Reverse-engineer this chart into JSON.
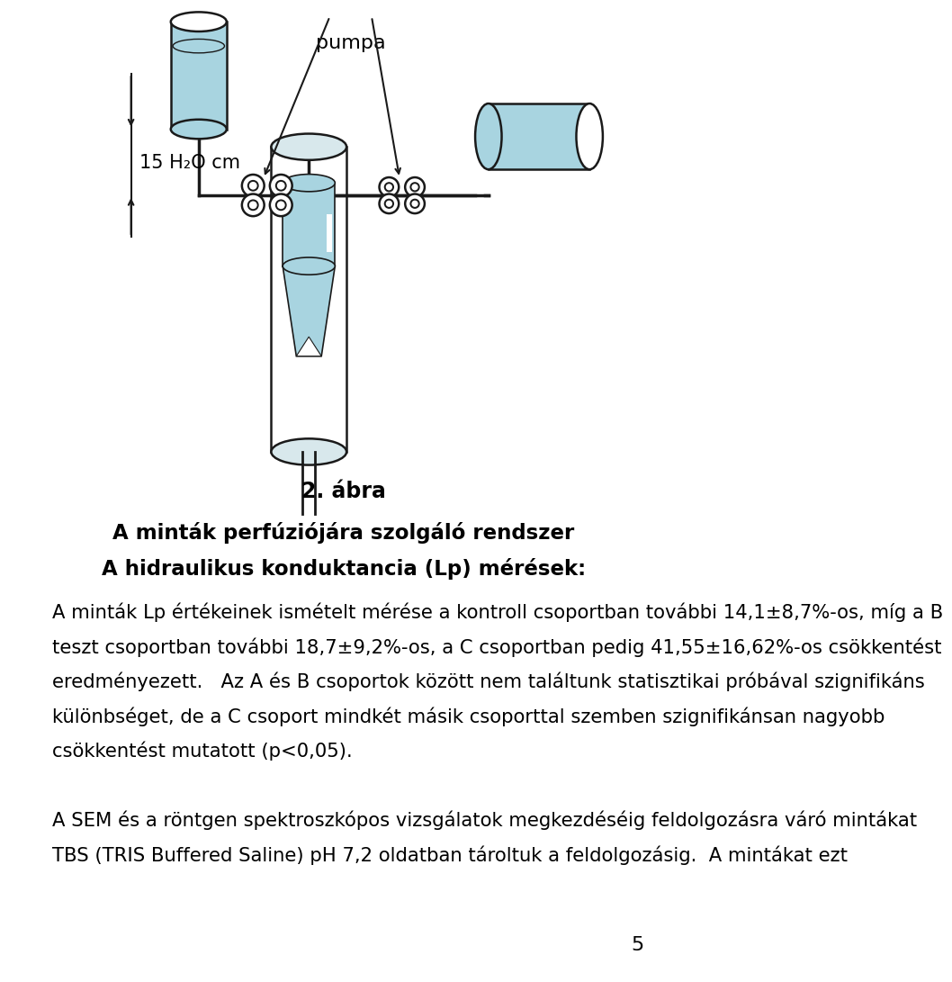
{
  "page_width": 9.6,
  "page_height": 13.92,
  "bg_color": "#ffffff",
  "light_blue": "#a8d4e0",
  "dark_stroke": "#1a1a1a",
  "figure_caption": "2. ábra",
  "title_line1": "A minták perfúziójára szolgáló rendszer",
  "title_line2": "A hidraulikus konduktancia (Lp) mérések:",
  "body_lines": [
    "A minták Lp értékeinek ismételt mérése a kontroll csoportban további 14,1±8,7%-os, míg a B",
    "teszt csoportban további 18,7±9,2%-os, a C csoportban pedig 41,55±16,62%-os csökkentést",
    "eredményezett.   Az A és B csoportok között nem találtunk statisztikai próbával szignifikáns",
    "különbséget, de a C csoport mindkét másik csoporttal szemben szignifikánsan nagyobb",
    "csökkentést mutatott (p<0,05).",
    "",
    "A SEM és a röntgen spektroszkópos vizsgálatok megkezdéséig feldolgozásra váró mintákat",
    "TBS (TRIS Buffered Saline) pH 7,2 oldatban tároltuk a feldolgozásig.  A mintákat ezt"
  ],
  "page_number": "5",
  "pumpa_label": "pumpa",
  "h2o_label": "15 H₂O cm"
}
